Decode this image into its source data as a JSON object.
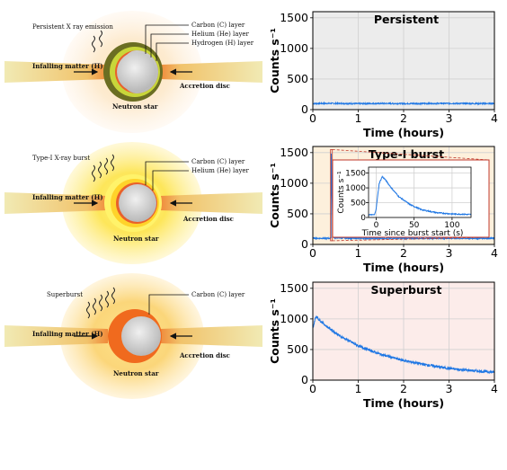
{
  "diagrams": {
    "persistent": {
      "emission": "Persistent X ray emission",
      "infalling": "Infalling matter (H)",
      "carbon": "Carbon (C) layer",
      "helium": "Helium (He) layer",
      "hydrogen": "Hydrogen (H) layer",
      "disc": "Accretion disc",
      "star": "Neutron star"
    },
    "typeI": {
      "emission": "Type-I X-ray burst",
      "infalling": "Infalling matter (H)",
      "carbon": "Carbon (C) layer",
      "helium": "Helium (He) layer",
      "disc": "Accretion disc",
      "star": "Neutron star"
    },
    "superburst": {
      "emission": "Superburst",
      "infalling": "Infalling matter (H)",
      "carbon": "Carbon (C) layer",
      "disc": "Accretion disc",
      "star": "Neutron star"
    }
  },
  "colors": {
    "line": "#1f77e4",
    "persistent_bg": "#ececec",
    "typeI_bg": "#fdf0dc",
    "superburst_bg": "#fcecea",
    "inset_frame": "#c0392b"
  },
  "chart_data": [
    {
      "type": "line",
      "title": "Persistent",
      "xlabel": "Time (hours)",
      "ylabel": "Counts s⁻¹",
      "xlim": [
        0,
        4
      ],
      "ylim": [
        0,
        1600
      ],
      "xticks": [
        "0",
        "1",
        "2",
        "3",
        "4"
      ],
      "yticks": [
        "0",
        "500",
        "1000",
        "1500"
      ],
      "grid": true,
      "series": [
        {
          "x": [
            0,
            0.5,
            1,
            1.5,
            2,
            2.5,
            3,
            3.5,
            4
          ],
          "y": [
            100,
            102,
            98,
            101,
            99,
            100,
            102,
            99,
            100
          ],
          "noise": 10
        }
      ]
    },
    {
      "type": "line",
      "title": "Type-I burst",
      "xlabel": "Time (hours)",
      "ylabel": "Counts s⁻¹",
      "xlim": [
        0,
        4
      ],
      "ylim": [
        0,
        1600
      ],
      "xticks": [
        "0",
        "1",
        "2",
        "3",
        "4"
      ],
      "yticks": [
        "0",
        "500",
        "1000",
        "1500"
      ],
      "grid": true,
      "series": [
        {
          "x": [
            0,
            0.38,
            0.4,
            0.405,
            0.41,
            0.42,
            0.44,
            0.46,
            1,
            2,
            3,
            4
          ],
          "y": [
            100,
            100,
            110,
            1500,
            1400,
            900,
            300,
            110,
            100,
            100,
            100,
            100
          ],
          "noise": 10
        }
      ],
      "inset": {
        "xlabel": "Time since burst start (s)",
        "ylabel": "Counts s⁻¹",
        "xlim": [
          -10,
          125
        ],
        "ylim": [
          0,
          1700
        ],
        "xticks": [
          "0",
          "50",
          "100"
        ],
        "yticks": [
          "0",
          "500",
          "1000",
          "1500"
        ],
        "series": [
          {
            "x": [
              -10,
              -2,
              0,
              4,
              8,
              12,
              20,
              30,
              45,
              60,
              80,
              100,
              125
            ],
            "y": [
              90,
              90,
              300,
              1150,
              1380,
              1280,
              1000,
              700,
              430,
              260,
              160,
              120,
              100
            ],
            "noise": 20
          }
        ]
      }
    },
    {
      "type": "line",
      "title": "Superburst",
      "xlabel": "Time (hours)",
      "ylabel": "Counts s⁻¹",
      "xlim": [
        0,
        4
      ],
      "ylim": [
        0,
        1600
      ],
      "xticks": [
        "0",
        "1",
        "2",
        "3",
        "4"
      ],
      "yticks": [
        "0",
        "500",
        "1000",
        "1500"
      ],
      "grid": true,
      "series": [
        {
          "x": [
            0,
            0.02,
            0.05,
            0.08,
            0.12,
            0.3,
            0.6,
            1,
            1.5,
            2,
            2.5,
            3,
            3.5,
            4
          ],
          "y": [
            850,
            900,
            1000,
            1050,
            1000,
            880,
            720,
            560,
            420,
            320,
            250,
            190,
            155,
            130
          ],
          "noise": 20
        }
      ]
    }
  ]
}
